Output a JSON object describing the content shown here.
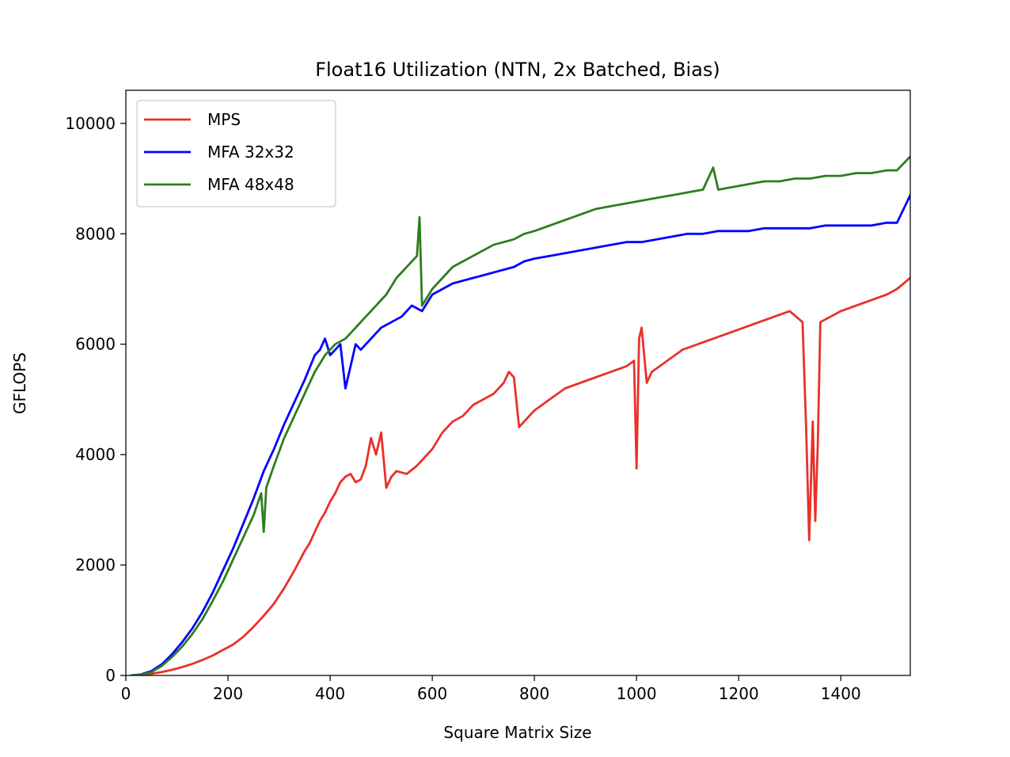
{
  "chart_data": {
    "type": "line",
    "title": "Float16 Utilization (NTN, 2x Batched, Bias)",
    "xlabel": "Square Matrix Size",
    "ylabel": "GFLOPS",
    "xlim": [
      0,
      1536
    ],
    "ylim": [
      0,
      10600
    ],
    "xticks": [
      0,
      200,
      400,
      600,
      800,
      1000,
      1200,
      1400
    ],
    "yticks": [
      0,
      2000,
      4000,
      6000,
      8000,
      10000
    ],
    "legend_position": "upper-left",
    "series": [
      {
        "name": "MPS",
        "color": "#e8312a",
        "x": [
          10,
          30,
          50,
          70,
          90,
          110,
          130,
          150,
          170,
          190,
          210,
          230,
          250,
          270,
          290,
          310,
          330,
          350,
          360,
          370,
          380,
          390,
          400,
          410,
          420,
          430,
          440,
          450,
          460,
          470,
          480,
          490,
          500,
          510,
          520,
          530,
          550,
          570,
          600,
          620,
          640,
          660,
          680,
          700,
          720,
          740,
          750,
          760,
          770,
          780,
          800,
          830,
          860,
          890,
          920,
          950,
          980,
          995,
          1000,
          1005,
          1010,
          1020,
          1030,
          1060,
          1090,
          1120,
          1150,
          1180,
          1210,
          1240,
          1270,
          1300,
          1325,
          1332,
          1338,
          1345,
          1350,
          1355,
          1360,
          1380,
          1400,
          1430,
          1460,
          1490,
          1510,
          1536
        ],
        "values": [
          0,
          10,
          30,
          60,
          100,
          150,
          210,
          280,
          360,
          460,
          560,
          700,
          880,
          1080,
          1300,
          1580,
          1900,
          2250,
          2400,
          2600,
          2800,
          2950,
          3150,
          3300,
          3500,
          3600,
          3650,
          3500,
          3550,
          3800,
          4300,
          4000,
          4400,
          3400,
          3600,
          3700,
          3650,
          3800,
          4100,
          4400,
          4600,
          4700,
          4900,
          5000,
          5100,
          5300,
          5500,
          5400,
          4500,
          4600,
          4800,
          5000,
          5200,
          5300,
          5400,
          5500,
          5600,
          5700,
          3750,
          6100,
          6300,
          5300,
          5500,
          5700,
          5900,
          6000,
          6100,
          6200,
          6300,
          6400,
          6500,
          6600,
          6400,
          4500,
          2450,
          4600,
          2800,
          4200,
          6400,
          6500,
          6600,
          6700,
          6800,
          6900,
          7000,
          7200
        ]
      },
      {
        "name": "MFA 32x32",
        "color": "#0000ff",
        "x": [
          10,
          30,
          50,
          70,
          90,
          110,
          130,
          150,
          170,
          190,
          210,
          230,
          250,
          270,
          290,
          310,
          330,
          350,
          370,
          380,
          390,
          400,
          410,
          420,
          430,
          440,
          450,
          460,
          480,
          500,
          520,
          540,
          560,
          580,
          600,
          620,
          640,
          660,
          680,
          700,
          720,
          740,
          760,
          780,
          800,
          830,
          860,
          890,
          920,
          950,
          980,
          1010,
          1040,
          1070,
          1100,
          1130,
          1160,
          1190,
          1220,
          1250,
          1280,
          1310,
          1340,
          1370,
          1400,
          1430,
          1460,
          1490,
          1510,
          1536
        ],
        "values": [
          0,
          20,
          80,
          200,
          380,
          600,
          850,
          1150,
          1500,
          1900,
          2300,
          2750,
          3200,
          3700,
          4100,
          4550,
          4950,
          5350,
          5800,
          5900,
          6100,
          5800,
          5900,
          6000,
          5200,
          5600,
          6000,
          5900,
          6100,
          6300,
          6400,
          6500,
          6700,
          6600,
          6900,
          7000,
          7100,
          7150,
          7200,
          7250,
          7300,
          7350,
          7400,
          7500,
          7550,
          7600,
          7650,
          7700,
          7750,
          7800,
          7850,
          7850,
          7900,
          7950,
          8000,
          8000,
          8050,
          8050,
          8050,
          8100,
          8100,
          8100,
          8100,
          8150,
          8150,
          8150,
          8150,
          8200,
          8200,
          8700
        ]
      },
      {
        "name": "MFA 48x48",
        "color": "#2e7d1e",
        "x": [
          10,
          30,
          50,
          70,
          90,
          110,
          130,
          150,
          170,
          190,
          210,
          230,
          250,
          265,
          270,
          275,
          290,
          310,
          330,
          350,
          370,
          390,
          410,
          430,
          450,
          470,
          490,
          510,
          530,
          550,
          570,
          575,
          580,
          600,
          620,
          640,
          660,
          680,
          700,
          720,
          740,
          760,
          780,
          800,
          830,
          860,
          890,
          920,
          950,
          980,
          1010,
          1040,
          1070,
          1100,
          1130,
          1150,
          1160,
          1190,
          1220,
          1250,
          1280,
          1310,
          1340,
          1370,
          1400,
          1430,
          1460,
          1490,
          1510,
          1536
        ],
        "values": [
          0,
          15,
          60,
          170,
          330,
          520,
          750,
          1020,
          1350,
          1700,
          2100,
          2500,
          2900,
          3300,
          2600,
          3400,
          3800,
          4300,
          4700,
          5100,
          5500,
          5800,
          6000,
          6100,
          6300,
          6500,
          6700,
          6900,
          7200,
          7400,
          7600,
          8300,
          6700,
          7000,
          7200,
          7400,
          7500,
          7600,
          7700,
          7800,
          7850,
          7900,
          8000,
          8050,
          8150,
          8250,
          8350,
          8450,
          8500,
          8550,
          8600,
          8650,
          8700,
          8750,
          8800,
          9200,
          8800,
          8850,
          8900,
          8950,
          8950,
          9000,
          9000,
          9050,
          9050,
          9100,
          9100,
          9150,
          9150,
          9400
        ]
      }
    ]
  }
}
